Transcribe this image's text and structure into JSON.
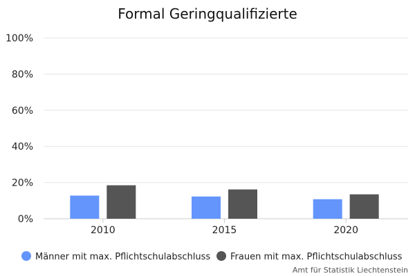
{
  "chart_data": {
    "type": "bar",
    "title": "Formal Geringqualifizierte",
    "xlabel": "",
    "ylabel": "",
    "categories": [
      "2010",
      "2015",
      "2020"
    ],
    "series": [
      {
        "name": "Männer mit max. Pflichtschulabschluss",
        "color": "#6495fc",
        "values": [
          12.8,
          12.3,
          10.8
        ]
      },
      {
        "name": "Frauen mit max. Pflichtschulabschluss",
        "color": "#555555",
        "values": [
          18.5,
          16.2,
          13.5
        ]
      }
    ],
    "ylim": [
      0,
      100
    ],
    "yticks": [
      "0%",
      "20%",
      "40%",
      "60%",
      "80%",
      "100%"
    ],
    "ytick_values": [
      0,
      20,
      40,
      60,
      80,
      100
    ],
    "grid": true,
    "legend_position": "bottom",
    "credit": "Amt für Statistik Liechtenstein"
  }
}
